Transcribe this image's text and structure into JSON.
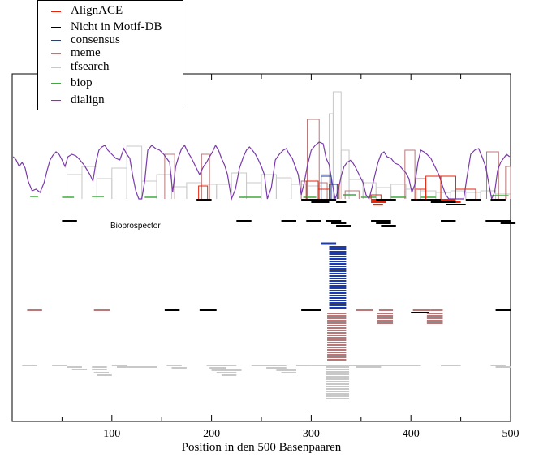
{
  "chart_data": {
    "type": "line",
    "title": "",
    "xlabel": "Position in den 500 Basenpaaren",
    "ylabel": "",
    "xlim": [
      0,
      500
    ],
    "xticks": [
      100,
      200,
      300,
      400,
      500
    ],
    "grid": false,
    "legend_placement": "top-left",
    "annotation": "Bioprospector",
    "series": [
      {
        "name": "AlignACE",
        "color": "#e8230a"
      },
      {
        "name": "Nicht in Motif-DB",
        "color": "#000000"
      },
      {
        "name": "consensus",
        "color": "#1c3aa8"
      },
      {
        "name": "meme",
        "color": "#b87878"
      },
      {
        "name": "tfsearch",
        "color": "#c8c8c8"
      },
      {
        "name": "biop",
        "color": "#3faa3a"
      },
      {
        "name": "dialign",
        "color": "#7a3aa8"
      }
    ],
    "dialign": {
      "x": [
        1,
        4,
        7,
        10,
        13,
        16,
        20,
        24,
        28,
        32,
        35,
        38,
        41,
        44,
        47,
        50,
        53,
        56,
        60,
        64,
        68,
        72,
        75,
        78,
        81,
        84,
        87,
        90,
        93,
        96,
        100,
        104,
        108,
        112,
        115,
        118,
        121,
        124,
        127,
        130,
        133,
        136,
        140,
        144,
        148,
        152,
        155,
        158,
        161,
        164,
        167,
        170,
        173,
        176,
        180,
        184,
        188,
        192,
        195,
        198,
        201,
        204,
        207,
        210,
        213,
        216,
        220,
        224,
        228,
        232,
        235,
        238,
        241,
        244,
        247,
        250,
        253,
        256,
        260,
        264,
        268,
        272,
        275,
        278,
        281,
        284,
        287,
        290,
        293,
        296,
        300,
        304,
        308,
        312,
        315,
        318,
        321,
        324,
        327,
        330,
        333,
        336,
        340,
        344,
        348,
        352,
        355,
        358,
        361,
        364,
        367,
        370,
        373,
        376,
        380,
        384,
        388,
        392,
        395,
        398,
        401,
        404,
        407,
        410,
        413,
        416,
        420,
        424,
        428,
        432,
        435,
        438,
        441,
        444,
        447,
        450,
        453,
        456,
        460,
        464,
        468,
        472,
        475,
        478,
        481,
        484,
        487,
        490,
        493,
        496,
        499
      ],
      "y": [
        52,
        48,
        40,
        45,
        38,
        22,
        10,
        12,
        8,
        20,
        35,
        48,
        54,
        58,
        55,
        48,
        40,
        52,
        55,
        53,
        48,
        42,
        36,
        30,
        22,
        45,
        60,
        64,
        66,
        60,
        55,
        50,
        48,
        62,
        55,
        50,
        28,
        10,
        0,
        0,
        22,
        60,
        66,
        62,
        60,
        55,
        50,
        45,
        8,
        40,
        52,
        62,
        66,
        58,
        50,
        40,
        30,
        40,
        45,
        52,
        58,
        66,
        60,
        50,
        42,
        30,
        0,
        12,
        38,
        52,
        60,
        64,
        60,
        55,
        48,
        40,
        30,
        0,
        14,
        48,
        55,
        60,
        62,
        55,
        50,
        40,
        30,
        5,
        20,
        40,
        60,
        66,
        70,
        68,
        50,
        42,
        20,
        0,
        10,
        28,
        40,
        45,
        48,
        40,
        30,
        20,
        5,
        0,
        14,
        30,
        45,
        55,
        58,
        52,
        50,
        44,
        42,
        36,
        32,
        25,
        8,
        18,
        45,
        60,
        58,
        55,
        50,
        40,
        30,
        15,
        5,
        0,
        0,
        0,
        0,
        0,
        0,
        25,
        55,
        60,
        62,
        50,
        40,
        20,
        0,
        8,
        35,
        45,
        50,
        55,
        52
      ]
    }
  }
}
